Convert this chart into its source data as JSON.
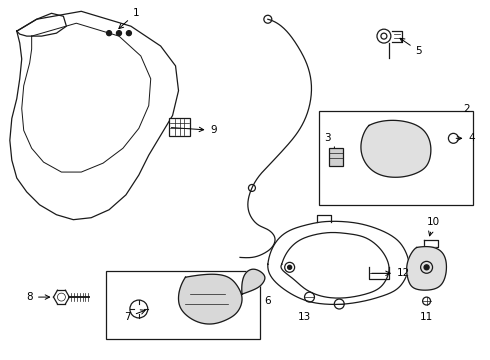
{
  "background_color": "#ffffff",
  "fig_width": 4.9,
  "fig_height": 3.6,
  "dpi": 100,
  "line_color": "#1a1a1a",
  "label_fontsize": 7.5
}
